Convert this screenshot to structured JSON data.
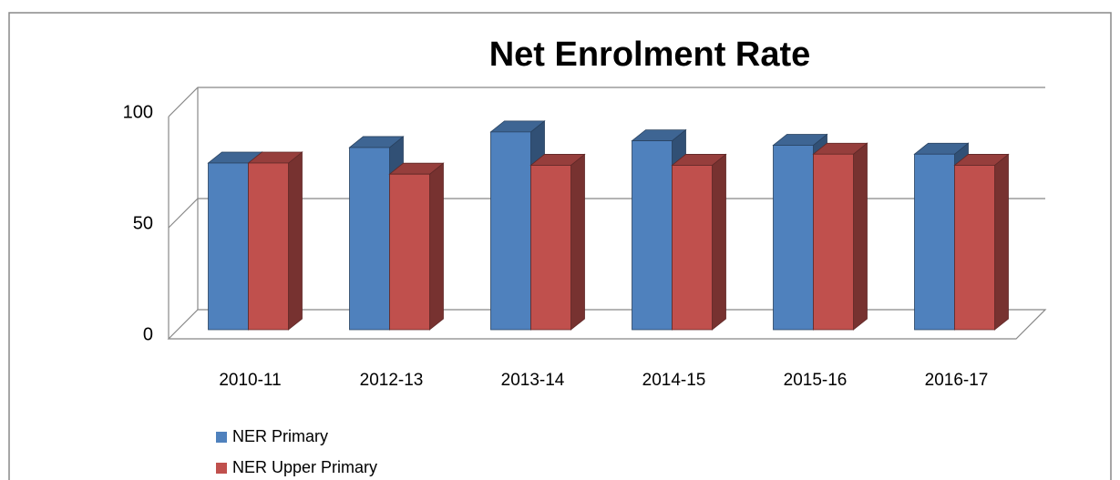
{
  "chart_data": {
    "type": "bar3d",
    "title": "Net Enrolment Rate",
    "categories": [
      "2010-11",
      "2012-13",
      "2013-14",
      "2014-15",
      "2015-16",
      "2016-17"
    ],
    "series": [
      {
        "name": "NER Primary",
        "color": "#4f81bd",
        "values": [
          75,
          82,
          89,
          85,
          83,
          79
        ]
      },
      {
        "name": "NER Upper Primary",
        "color": "#c0504d",
        "values": [
          75,
          70,
          74,
          74,
          79,
          74
        ]
      }
    ],
    "ylim": [
      0,
      100
    ],
    "yticks": [
      0,
      50,
      100
    ],
    "grid": true
  }
}
